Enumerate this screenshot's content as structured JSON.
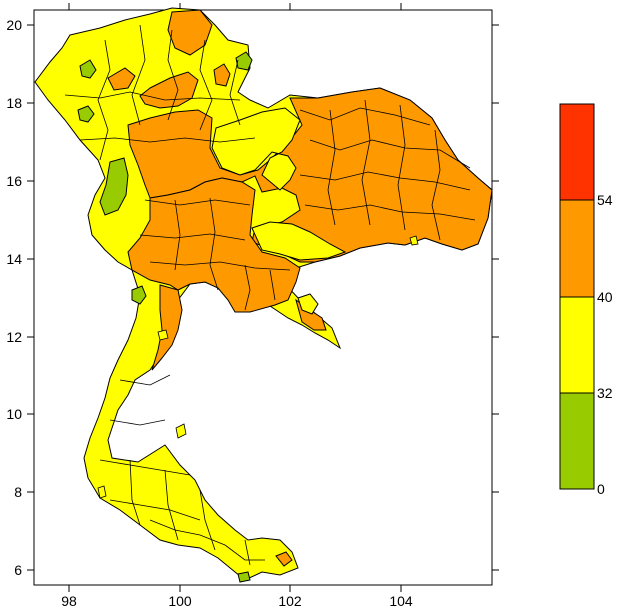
{
  "map": {
    "x_ticks": [
      "98",
      "100",
      "102",
      "104"
    ],
    "y_ticks": [
      "20",
      "18",
      "16",
      "14",
      "12",
      "10",
      "8",
      "6"
    ]
  },
  "legend": {
    "bins": [
      {
        "from": 0,
        "to": 32,
        "color": "#99cc00"
      },
      {
        "from": 32,
        "to": 40,
        "color": "#ffff00"
      },
      {
        "from": 40,
        "to": 54,
        "color": "#ff9900"
      },
      {
        "from": 54,
        "to": null,
        "color": "#ff3300"
      }
    ],
    "labels": [
      "0",
      "32",
      "40",
      "54"
    ]
  },
  "colors": {
    "green": "#99cc00",
    "yellow": "#ffff00",
    "orange": "#ff9900",
    "red": "#ff3300",
    "border": "#000000"
  }
}
